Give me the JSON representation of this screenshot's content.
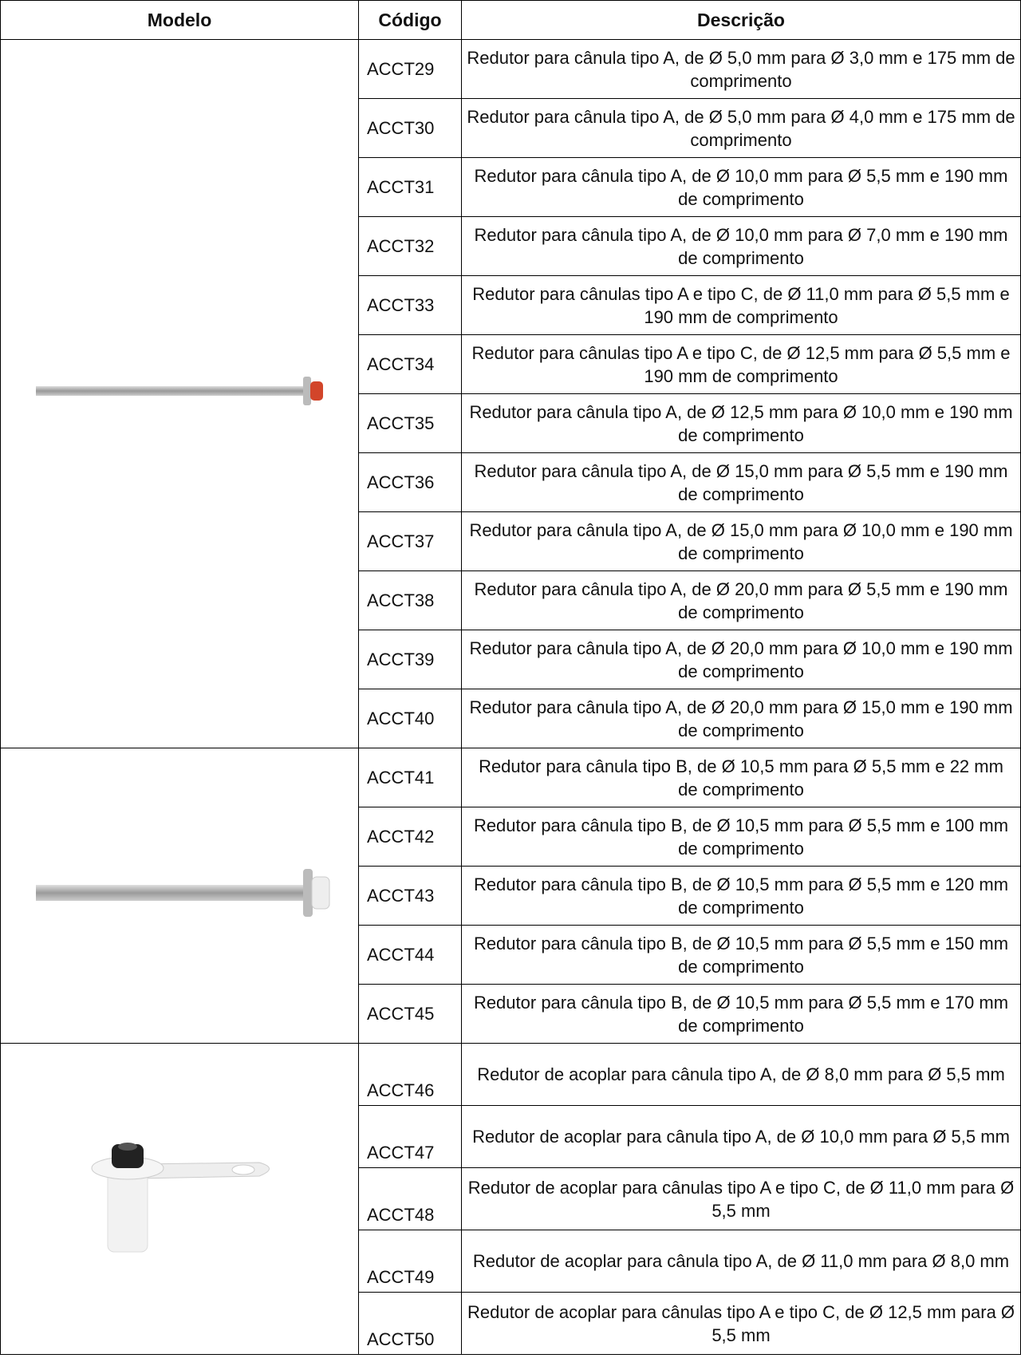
{
  "table": {
    "header": [
      "Modelo",
      "Código",
      "Descrição"
    ],
    "groups": [
      {
        "rows": [
          {
            "code": "ACCT29",
            "description": "Redutor para cânula tipo A, de Ø 5,0 mm para Ø 3,0 mm e 175 mm de comprimento"
          },
          {
            "code": "ACCT30",
            "description": "Redutor para cânula tipo A, de Ø 5,0 mm para Ø 4,0 mm e 175 mm de comprimento"
          },
          {
            "code": "ACCT31",
            "description": "Redutor para cânula tipo A, de Ø 10,0 mm para Ø 5,5 mm e 190 mm de comprimento"
          },
          {
            "code": "ACCT32",
            "description": "Redutor para cânula tipo A, de Ø 10,0 mm para Ø 7,0 mm e 190 mm de comprimento"
          },
          {
            "code": "ACCT33",
            "description": "Redutor para cânulas tipo A e tipo C, de Ø 11,0 mm para Ø 5,5 mm e 190 mm de comprimento"
          },
          {
            "code": "ACCT34",
            "description": "Redutor para cânulas tipo A e tipo C, de Ø 12,5 mm para Ø 5,5 mm e 190 mm de comprimento"
          },
          {
            "code": "ACCT35",
            "description": "Redutor para cânula tipo A, de Ø 12,5 mm para Ø 10,0 mm e 190 mm de comprimento"
          },
          {
            "code": "ACCT36",
            "description": "Redutor para cânula tipo A, de Ø 15,0 mm para Ø 5,5 mm e 190 mm de comprimento"
          },
          {
            "code": "ACCT37",
            "description": "Redutor para cânula tipo A, de Ø 15,0 mm para Ø 10,0 mm e 190 mm de comprimento"
          },
          {
            "code": "ACCT38",
            "description": "Redutor para cânula tipo A, de Ø 20,0 mm para Ø 5,5 mm e 190 mm de comprimento"
          },
          {
            "code": "ACCT39",
            "description": "Redutor para cânula tipo A, de Ø 20,0 mm para Ø 10,0 mm e 190 mm de comprimento"
          },
          {
            "code": "ACCT40",
            "description": "Redutor para cânula tipo A, de Ø 20,0 mm para Ø 15,0 mm e 190 mm de comprimento"
          }
        ]
      },
      {
        "rows": [
          {
            "code": "ACCT41",
            "description": "Redutor para cânula tipo B, de Ø 10,5 mm para Ø 5,5 mm e 22 mm de comprimento"
          },
          {
            "code": "ACCT42",
            "description": "Redutor para cânula tipo B, de Ø 10,5 mm para Ø 5,5 mm e 100 mm de comprimento"
          },
          {
            "code": "ACCT43",
            "description": "Redutor para cânula tipo B, de Ø 10,5 mm para Ø 5,5 mm e 120 mm de comprimento"
          },
          {
            "code": "ACCT44",
            "description": "Redutor para cânula tipo B, de Ø 10,5 mm para Ø 5,5 mm e 150 mm de comprimento"
          },
          {
            "code": "ACCT45",
            "description": "Redutor para cânula tipo B, de Ø 10,5 mm para Ø 5,5 mm e 170 mm de comprimento"
          }
        ]
      },
      {
        "rows": [
          {
            "code": "ACCT46",
            "description": "Redutor de acoplar para cânula tipo A, de Ø 8,0 mm para Ø 5,5 mm"
          },
          {
            "code": "ACCT47",
            "description": "Redutor de acoplar para cânula tipo A, de Ø 10,0 mm para Ø 5,5 mm"
          },
          {
            "code": "ACCT48",
            "description": "Redutor de acoplar para cânulas tipo A e tipo C, de Ø 11,0 mm para Ø 5,5 mm"
          },
          {
            "code": "ACCT49",
            "description": "Redutor de acoplar para cânula tipo A, de Ø 11,0 mm para Ø 8,0 mm"
          },
          {
            "code": "ACCT50",
            "description": "Redutor de acoplar para cânulas tipo A e tipo C, de Ø 12,5 mm para Ø 5,5 mm"
          }
        ]
      }
    ]
  }
}
